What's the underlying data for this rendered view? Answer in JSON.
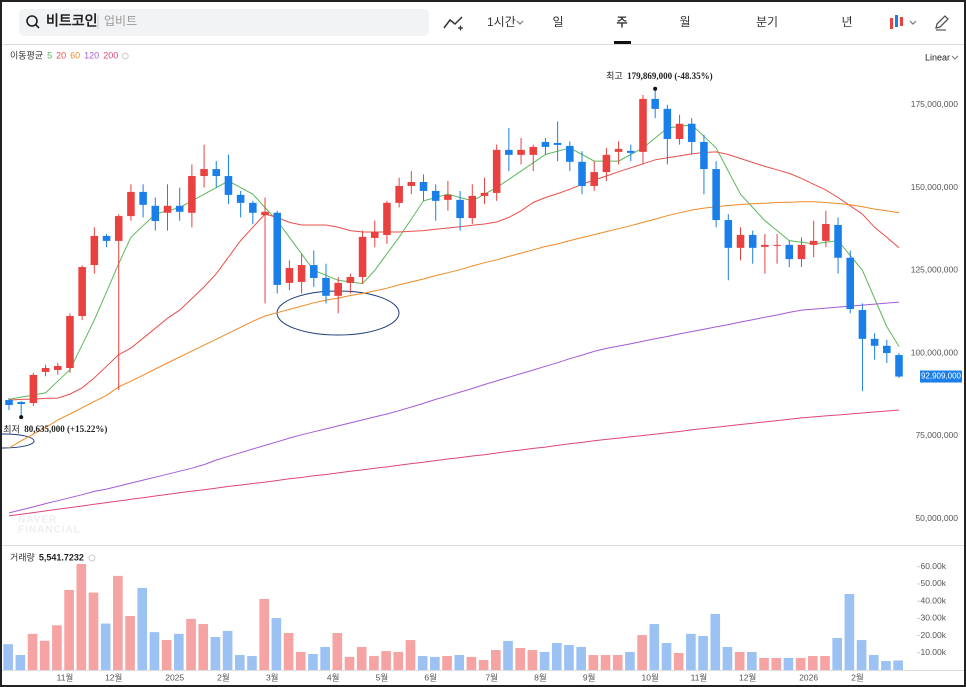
{
  "toolbar": {
    "search": "비트코인",
    "exchange": "업비트",
    "interval": "1시간",
    "periods": [
      "일",
      "주",
      "월",
      "분기",
      "년"
    ]
  },
  "chart_data": {
    "type": "candlestick",
    "scale": "Linear",
    "watermark": [
      "NAVER",
      "FINANCIAL"
    ],
    "up_color": "#e8413f",
    "down_color": "#1a7fe8",
    "categories": [
      null,
      null,
      null,
      null,
      null,
      "11월",
      null,
      null,
      null,
      "12월",
      null,
      null,
      null,
      null,
      "2025",
      null,
      null,
      null,
      "2월",
      null,
      null,
      null,
      "3월",
      null,
      null,
      null,
      null,
      "4월",
      null,
      null,
      null,
      "5월",
      null,
      null,
      null,
      "6월",
      null,
      null,
      null,
      null,
      "7월",
      null,
      null,
      null,
      "8월",
      null,
      null,
      null,
      "9월",
      null,
      null,
      null,
      null,
      "10월",
      null,
      null,
      null,
      "11월",
      null,
      null,
      null,
      "12월",
      null,
      null,
      null,
      null,
      "2026",
      null,
      null,
      null,
      "2월",
      null,
      null,
      null
    ],
    "open": [
      85800000,
      85200000,
      84900000,
      94300000,
      94900000,
      95500000,
      111200000,
      126600000,
      135400000,
      133900000,
      141400000,
      148700000,
      144500000,
      142400000,
      144500000,
      142400000,
      153500000,
      155600000,
      153500000,
      147800000,
      145400000,
      141700000,
      142400000,
      121200000,
      121500000,
      126600000,
      122700000,
      117300000,
      121200000,
      123000000,
      134800000,
      135700000,
      145400000,
      150500000,
      151700000,
      149000000,
      146300000,
      146300000,
      140800000,
      147500000,
      148400000,
      161400000,
      159900000,
      159900000,
      163800000,
      163500000,
      162600000,
      157800000,
      150500000,
      154700000,
      160800000,
      161100000,
      160800000,
      176800000,
      173800000,
      164700000,
      169300000,
      163800000,
      155600000,
      140200000,
      131800000,
      135700000,
      132100000,
      132400000,
      132700000,
      128400000,
      132700000,
      133900000,
      138700000,
      128800000,
      113000000,
      104300000,
      102200000,
      99400000
    ],
    "high": [
      86400000,
      85500000,
      94000000,
      96500000,
      97000000,
      112000000,
      126500000,
      138000000,
      136000000,
      142000000,
      151000000,
      151000000,
      147000000,
      151000000,
      150000000,
      157000000,
      163000000,
      158000000,
      160000000,
      149000000,
      146000000,
      147000000,
      143000000,
      128000000,
      130000000,
      131000000,
      127000000,
      123000000,
      124000000,
      137000000,
      140000000,
      146000000,
      153000000,
      155000000,
      154000000,
      151000000,
      152000000,
      149000000,
      151000000,
      153000000,
      163000000,
      168000000,
      165000000,
      163000000,
      165000000,
      170000000,
      164000000,
      161000000,
      158000000,
      162000000,
      164000000,
      163000000,
      178000000,
      179869000,
      175000000,
      172000000,
      171000000,
      166000000,
      158000000,
      142000000,
      138000000,
      137000000,
      136000000,
      136000000,
      134000000,
      135000000,
      140000000,
      143000000,
      141000000,
      131000000,
      115000000,
      106000000,
      104000000,
      100000000
    ],
    "low": [
      82800000,
      80635000,
      84000000,
      93000000,
      93500000,
      94000000,
      110000000,
      124000000,
      132000000,
      88800000,
      140000000,
      141000000,
      137000000,
      137000000,
      140000000,
      138000000,
      150000000,
      150000000,
      145000000,
      141000000,
      139000000,
      115000000,
      118000000,
      119000000,
      118000000,
      120000000,
      115000000,
      112000000,
      118000000,
      121000000,
      132000000,
      133000000,
      144000000,
      148000000,
      146000000,
      140000000,
      143000000,
      137000000,
      139000000,
      145000000,
      146000000,
      155000000,
      157000000,
      155000000,
      160000000,
      158000000,
      155000000,
      148000000,
      149000000,
      152000000,
      157000000,
      158000000,
      157000000,
      171000000,
      157000000,
      163000000,
      160000000,
      148000000,
      138000000,
      122000000,
      128000000,
      127000000,
      124000000,
      127000000,
      126000000,
      126000000,
      129000000,
      132000000,
      124000000,
      112000000,
      88500000,
      98000000,
      97000000,
      92500000
    ],
    "close": [
      84300000,
      84600000,
      93400000,
      95500000,
      96100000,
      111200000,
      126000000,
      135400000,
      133900000,
      141400000,
      148700000,
      144800000,
      139900000,
      144500000,
      142700000,
      153500000,
      155600000,
      153500000,
      147800000,
      145400000,
      142400000,
      142700000,
      120600000,
      125700000,
      126600000,
      122700000,
      117300000,
      121200000,
      123000000,
      135100000,
      136600000,
      145400000,
      150500000,
      151700000,
      149000000,
      146000000,
      147800000,
      140800000,
      147500000,
      148400000,
      161400000,
      159900000,
      161400000,
      162300000,
      162300000,
      162900000,
      157800000,
      150500000,
      154700000,
      159900000,
      161700000,
      160500000,
      176800000,
      173800000,
      164700000,
      169300000,
      163800000,
      155600000,
      140200000,
      131800000,
      135700000,
      131800000,
      132700000,
      132700000,
      128400000,
      132700000,
      133900000,
      139000000,
      128800000,
      113300000,
      104300000,
      102200000,
      100000000,
      92909000
    ],
    "last_label": "92,909,000",
    "ylim": [
      42000000,
      193100000
    ],
    "yticks": [
      {
        "value": 50000000,
        "label": "50,000,000"
      },
      {
        "value": 75000000,
        "label": "75,000,000"
      },
      {
        "value": 100000000,
        "label": "100,000,000"
      },
      {
        "value": 125000000,
        "label": "125,000,000"
      },
      {
        "value": 150000000,
        "label": "150,000,000"
      },
      {
        "value": 175000000,
        "label": "175,000,000"
      }
    ],
    "ma_label": "이동평균",
    "moving_averages": [
      {
        "name": "5",
        "color": "#5cb85c",
        "values": [
          86000000,
          86700000,
          87300000,
          88000000,
          91500000,
          95000000,
          102500000,
          110000000,
          118500000,
          127000000,
          135000000,
          138500000,
          142000000,
          143000000,
          144000000,
          146000000,
          148000000,
          150000000,
          152000000,
          150000000,
          148000000,
          144000000,
          140000000,
          135000000,
          130000000,
          125000000,
          123500000,
          122000000,
          121500000,
          121000000,
          125000000,
          130000000,
          135000000,
          140500000,
          146000000,
          147000000,
          148000000,
          147000000,
          146000000,
          148000000,
          150000000,
          152500000,
          155000000,
          157500000,
          160000000,
          161000000,
          162000000,
          160000000,
          158000000,
          158000000,
          158000000,
          160000000,
          162000000,
          165000000,
          168000000,
          168500000,
          169000000,
          165500000,
          162000000,
          155000000,
          148000000,
          144000000,
          140000000,
          137000000,
          134000000,
          133500000,
          133000000,
          133500000,
          134000000,
          129500000,
          125000000,
          116500000,
          108000000,
          102000000
        ]
      },
      {
        "name": "20",
        "color": "#e8504a",
        "values": [
          85800000,
          86000000,
          86100000,
          86300000,
          86400000,
          87600000,
          89500000,
          92500000,
          96000000,
          99500000,
          101500000,
          104500000,
          107500000,
          110500000,
          113000000,
          116500000,
          120000000,
          124000000,
          129000000,
          134000000,
          138000000,
          142000000,
          141000000,
          139500000,
          138700000,
          138700000,
          138700000,
          138000000,
          137000000,
          136600000,
          136600000,
          136600000,
          136600000,
          136800000,
          137000000,
          137400000,
          137800000,
          138200000,
          138600000,
          139000000,
          139600000,
          141000000,
          143000000,
          145500000,
          147000000,
          148200000,
          149500000,
          151000000,
          152300000,
          153500000,
          154800000,
          156000000,
          157200000,
          158400000,
          159000000,
          159600000,
          160200000,
          160600000,
          160800000,
          160000000,
          158800000,
          157600000,
          156400000,
          155400000,
          154300000,
          152800000,
          151000000,
          149300000,
          147000000,
          144500000,
          142000000,
          138000000,
          135000000,
          131800000
        ]
      },
      {
        "name": "60",
        "color": "#f08a24",
        "values": [
          71300000,
          73500000,
          75500000,
          77500000,
          79800000,
          81600000,
          83500000,
          85400000,
          87200000,
          89800000,
          91500000,
          93300000,
          95200000,
          97000000,
          98800000,
          100600000,
          102400000,
          104200000,
          106000000,
          107800000,
          109600000,
          111200000,
          112200000,
          113200000,
          114200000,
          115200000,
          116000000,
          116600000,
          117400000,
          118000000,
          118800000,
          119600000,
          120600000,
          121500000,
          122400000,
          123400000,
          124300000,
          125200000,
          126300000,
          127300000,
          128200000,
          129200000,
          130200000,
          131200000,
          132200000,
          133000000,
          134000000,
          134900000,
          135800000,
          136700000,
          137600000,
          138500000,
          139500000,
          140500000,
          141500000,
          142400000,
          143200000,
          143800000,
          144200000,
          144600000,
          144900000,
          145100000,
          145300000,
          145500000,
          145600000,
          145700000,
          145700000,
          145500000,
          145200000,
          144800000,
          144200000,
          143500000,
          143000000,
          142400000
        ]
      },
      {
        "name": "120",
        "color": "#a55bd6",
        "values": [
          51700000,
          52600000,
          53500000,
          54500000,
          55400000,
          56300000,
          57200000,
          58200000,
          58900000,
          59800000,
          60700000,
          61600000,
          62500000,
          63400000,
          64300000,
          65200000,
          66300000,
          67700000,
          68800000,
          69900000,
          71000000,
          72100000,
          73200000,
          74300000,
          75300000,
          76200000,
          77100000,
          78000000,
          78900000,
          79800000,
          80700000,
          81600000,
          82600000,
          83700000,
          84800000,
          86000000,
          87100000,
          88200000,
          89300000,
          90500000,
          91600000,
          92700000,
          93800000,
          94900000,
          96000000,
          97100000,
          98300000,
          99400000,
          100500000,
          101400000,
          102100000,
          102800000,
          103600000,
          104300000,
          105000000,
          105800000,
          106500000,
          107200000,
          107900000,
          108600000,
          109400000,
          110100000,
          110800000,
          111500000,
          112300000,
          113000000,
          113300000,
          113600000,
          113900000,
          114200000,
          114500000,
          114800000,
          115100000,
          115400000
        ]
      },
      {
        "name": "200",
        "color": "#e0457b",
        "values": [
          50800000,
          51300000,
          51800000,
          52300000,
          52800000,
          53300000,
          53800000,
          54300000,
          54800000,
          55300000,
          55800000,
          56300000,
          56800000,
          57300000,
          57800000,
          58300000,
          58700000,
          59200000,
          59700000,
          60100000,
          60600000,
          61000000,
          61500000,
          62000000,
          62400000,
          62900000,
          63300000,
          63800000,
          64300000,
          64700000,
          65200000,
          65600000,
          66100000,
          66600000,
          67000000,
          67500000,
          68000000,
          68400000,
          68900000,
          69300000,
          69800000,
          70300000,
          70700000,
          71200000,
          71600000,
          72100000,
          72600000,
          73000000,
          73500000,
          73900000,
          74300000,
          74700000,
          75100000,
          75500000,
          75900000,
          76300000,
          76800000,
          77200000,
          77600000,
          78000000,
          78400000,
          78800000,
          79200000,
          79600000,
          80000000,
          80400000,
          80700000,
          81000000,
          81300000,
          81600000,
          81900000,
          82200000,
          82500000,
          82800000
        ]
      }
    ],
    "annotations": [
      {
        "label": "최고",
        "text": "179,869,000 (-48.35%)"
      },
      {
        "label": "최저",
        "text": "80,635,000 (+15.22%)"
      }
    ],
    "volume": {
      "name": "거래량",
      "last_label": "5,541.7232",
      "up_color": "#f5a3a3",
      "down_color": "#9cc1f3",
      "values": [
        15000,
        8700,
        21000,
        17000,
        26000,
        46500,
        61600,
        45000,
        27000,
        54700,
        31400,
        47700,
        22000,
        17400,
        21000,
        29700,
        26700,
        19200,
        22700,
        8700,
        8100,
        41300,
        30200,
        21500,
        10500,
        9300,
        13400,
        21500,
        7600,
        13400,
        8100,
        11000,
        10500,
        17400,
        8100,
        7600,
        8100,
        8700,
        7600,
        5800,
        11600,
        16900,
        12800,
        11600,
        10500,
        15700,
        14500,
        13400,
        8700,
        8700,
        8700,
        10500,
        20300,
        26700,
        15700,
        9900,
        21000,
        19800,
        32600,
        13400,
        10500,
        10500,
        7000,
        7000,
        7000,
        7000,
        8100,
        8100,
        18600,
        44200,
        17400,
        8700,
        5200,
        5541.7232
      ],
      "ylim": [
        0,
        70900
      ],
      "yticks": [
        {
          "value": 10000,
          "label": "10.00k"
        },
        {
          "value": 20000,
          "label": "20.00k"
        },
        {
          "value": 30000,
          "label": "30.00k"
        },
        {
          "value": 40000,
          "label": "40.00k"
        },
        {
          "value": 50000,
          "label": "50.00k"
        },
        {
          "value": 60000,
          "label": "60.00k"
        }
      ]
    }
  }
}
